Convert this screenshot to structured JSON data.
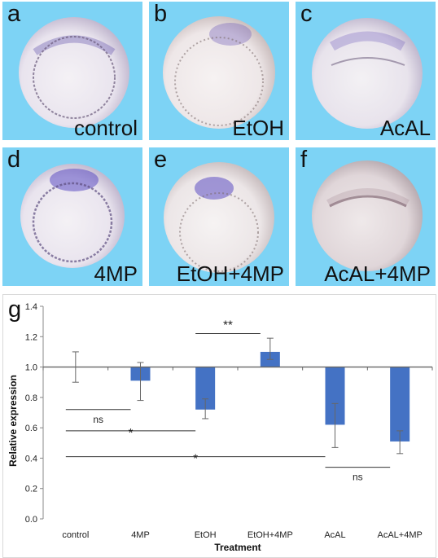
{
  "panels": [
    {
      "letter": "a",
      "condition": "control"
    },
    {
      "letter": "b",
      "condition": "EtOH"
    },
    {
      "letter": "c",
      "condition": "AcAL"
    },
    {
      "letter": "d",
      "condition": "4MP"
    },
    {
      "letter": "e",
      "condition": "EtOH+4MP"
    },
    {
      "letter": "f",
      "condition": "AcAL+4MP"
    }
  ],
  "colors": {
    "panel_background": "#7dd3f5",
    "bar_fill": "#4472c4",
    "embryo_stain": "#6a55b8"
  },
  "chart_label": "g",
  "chart_data": {
    "type": "bar",
    "categories": [
      "control",
      "4MP",
      "EtOH",
      "EtOH+4MP",
      "AcAL",
      "AcAL+4MP"
    ],
    "values": [
      1.0,
      0.91,
      0.72,
      1.1,
      0.62,
      0.51
    ],
    "error_low": [
      0.9,
      0.78,
      0.66,
      1.05,
      0.47,
      0.43
    ],
    "error_high": [
      1.1,
      1.03,
      0.79,
      1.19,
      0.76,
      0.58
    ],
    "baseline": 1.0,
    "xlabel": "Treatment",
    "ylabel": "Relative expression",
    "ylim": [
      0.0,
      1.4
    ],
    "yticks": [
      "0.0",
      "0.2",
      "0.4",
      "0.6",
      "0.8",
      "1.0",
      "1.2",
      "1.4"
    ],
    "grid": false,
    "significance": [
      {
        "from": "EtOH",
        "to": "EtOH+4MP",
        "label": "**",
        "y": 1.22
      },
      {
        "from": "control",
        "to": "4MP",
        "label": "ns",
        "y": 0.72
      },
      {
        "from": "control",
        "to": "EtOH",
        "label": "*",
        "y": 0.58
      },
      {
        "from": "control",
        "to": "AcAL",
        "label": "*",
        "y": 0.41
      },
      {
        "from": "AcAL",
        "to": "AcAL+4MP",
        "label": "ns",
        "y": 0.34
      }
    ]
  }
}
